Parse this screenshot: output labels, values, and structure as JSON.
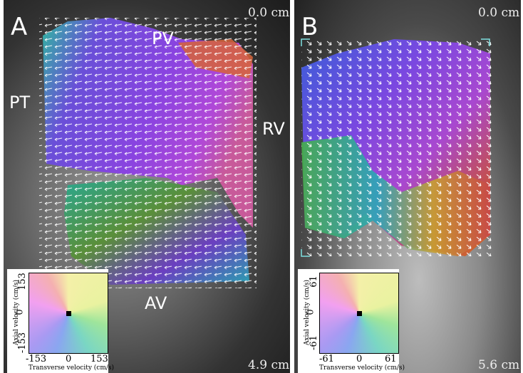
{
  "panels": [
    {
      "letter": "A",
      "depth_top": "0.0 cm",
      "depth_bottom": "4.9 cm",
      "labels": {
        "pv": "PV",
        "pt": "PT",
        "rv": "RV",
        "av": "AV"
      },
      "legend": {
        "axial_label": "Axial velocity (cm/s)",
        "transverse_label": "Transverse velocity (cm/s)",
        "y_ticks": [
          "153",
          "0",
          "-153"
        ],
        "x_ticks": [
          "-153",
          "0",
          "153"
        ]
      }
    },
    {
      "letter": "B",
      "depth_top": "0.0 cm",
      "depth_bottom": "5.6 cm",
      "legend": {
        "axial_label": "Axial velocity (cm/s)",
        "transverse_label": "Transverse velocity (cm/s)",
        "y_ticks": [
          "61",
          "0",
          "-61"
        ],
        "x_ticks": [
          "-61",
          "0",
          "61"
        ]
      }
    }
  ]
}
